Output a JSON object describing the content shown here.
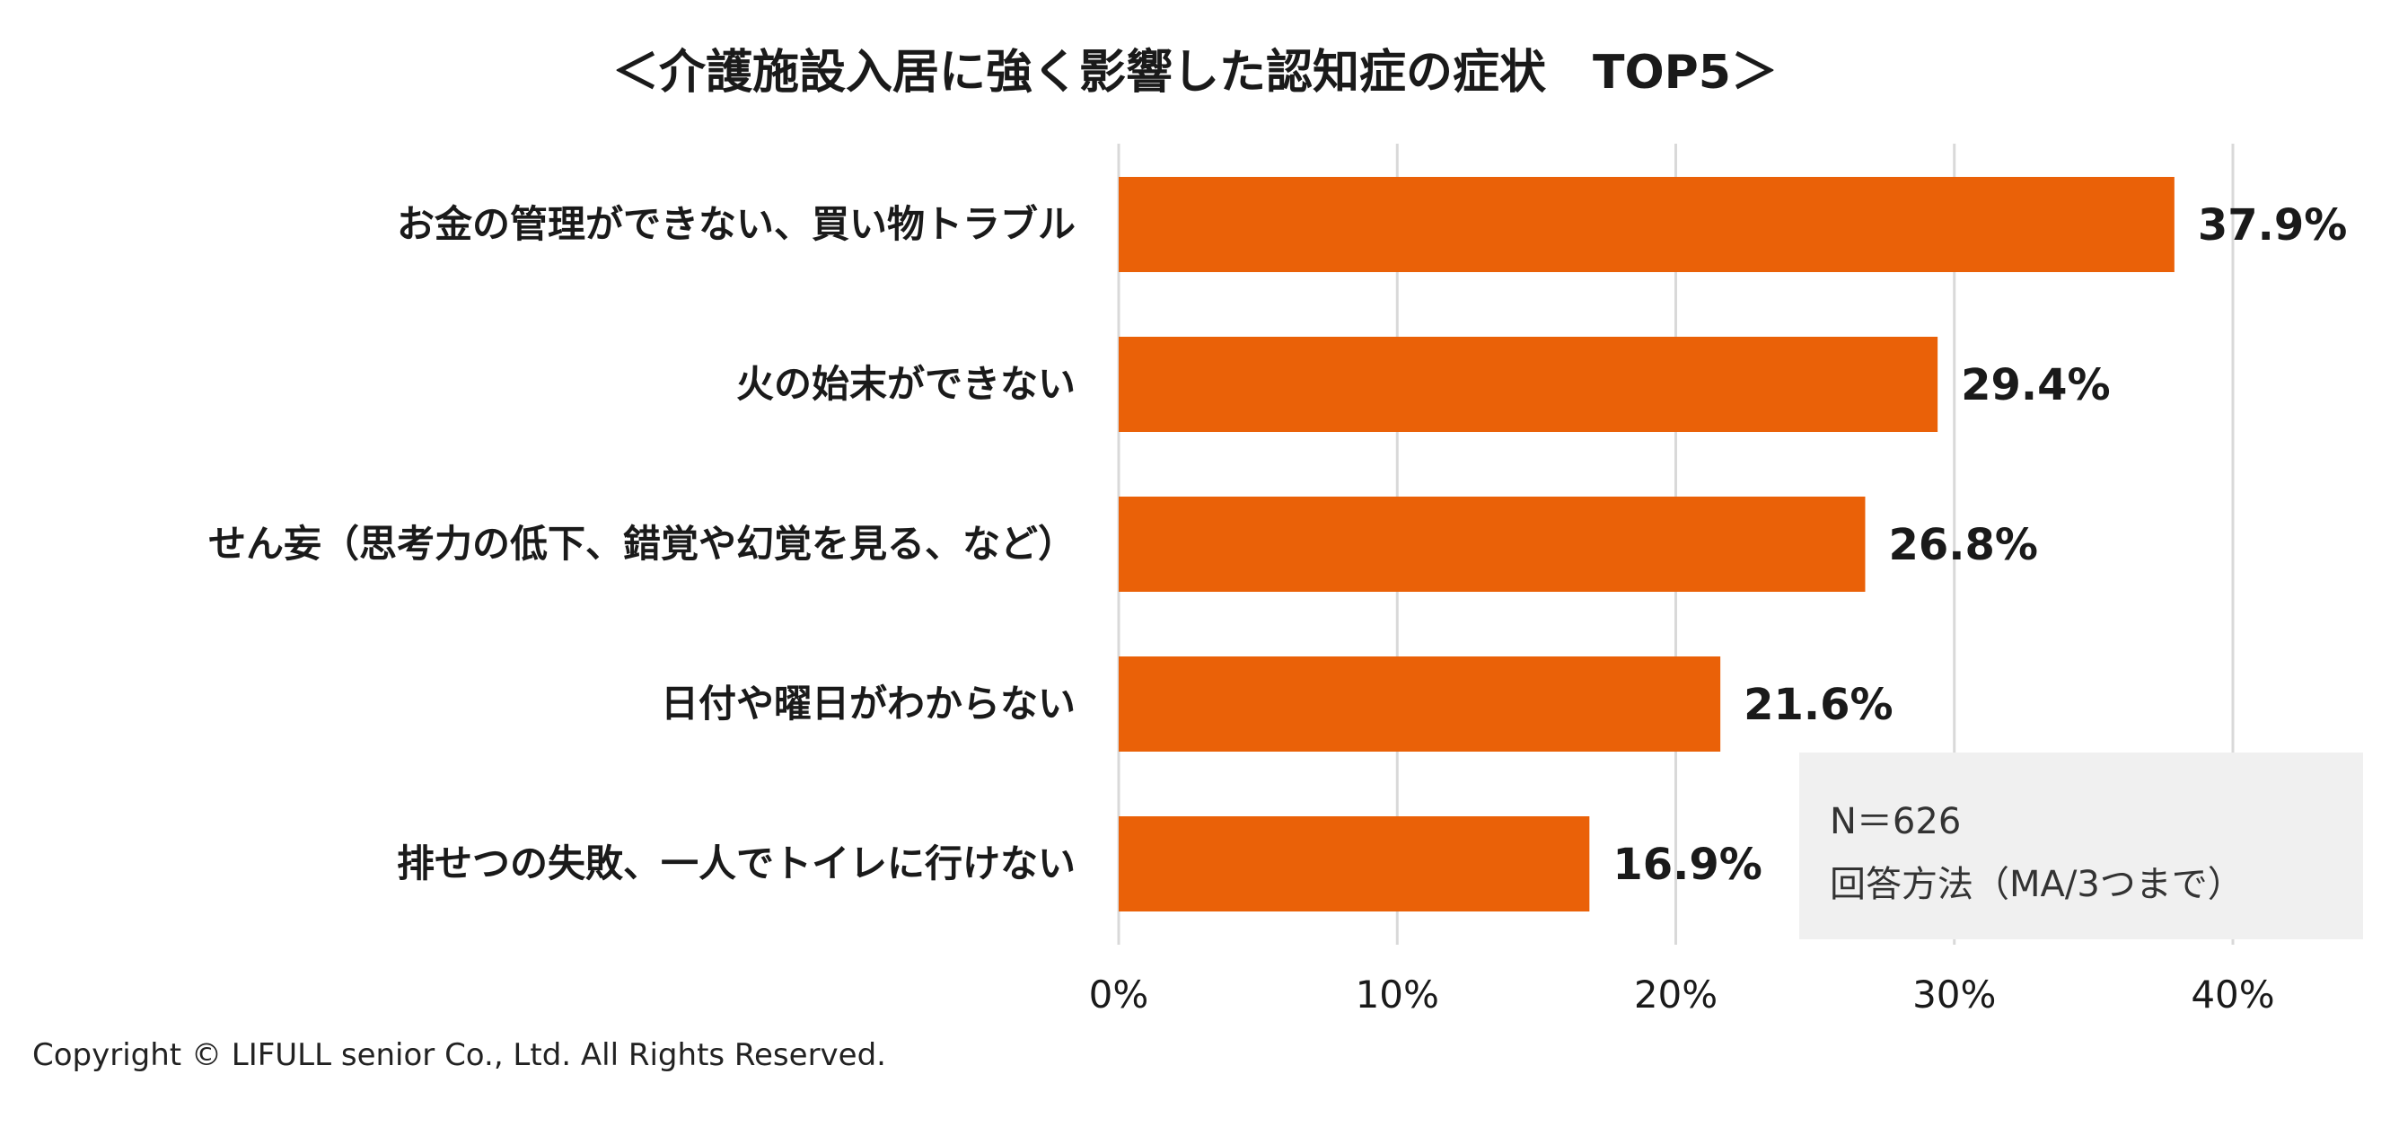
{
  "chart_data": {
    "type": "bar",
    "orientation": "horizontal",
    "title": "＜介護施設入居に強く影響した認知症の症状　TOP5＞",
    "categories": [
      "お金の管理ができない、買い物トラブル",
      "火の始末ができない",
      "せん妄（思考力の低下、錯覚や幻覚を見る、など）",
      "日付や曜日がわからない",
      "排せつの失敗、一人でトイレに行けない"
    ],
    "values": [
      37.9,
      29.4,
      26.8,
      21.6,
      16.9
    ],
    "value_labels": [
      "37.9%",
      "29.4%",
      "26.8%",
      "21.6%",
      "16.9%"
    ],
    "xlim": [
      0,
      40
    ],
    "xticks": [
      0,
      10,
      20,
      30,
      40
    ],
    "xtick_labels": [
      "0%",
      "10%",
      "20%",
      "30%",
      "40%"
    ],
    "xlabel": "",
    "ylabel": "",
    "grid": true,
    "bar_color": "#ea6108"
  },
  "note": {
    "sample_size": "N＝626",
    "method": "回答方法（MA/3つまで）"
  },
  "footer": {
    "copyright": "Copyright © LIFULL senior Co., Ltd. All Rights Reserved."
  },
  "colors": {
    "grid": "#d9d9d9",
    "note_bg": "#f0f0f0"
  }
}
